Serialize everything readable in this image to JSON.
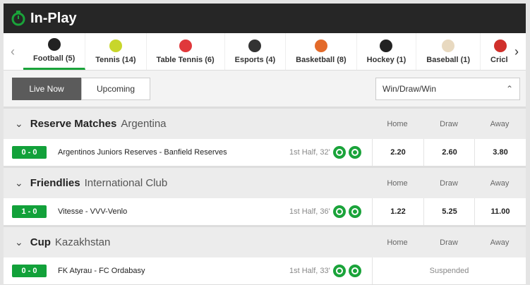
{
  "header": {
    "title": "In-Play"
  },
  "tabs": [
    "Football (5)",
    "Tennis (14)",
    "Table Tennis (6)",
    "Esports (4)",
    "Basketball (8)",
    "Hockey (1)",
    "Baseball (1)",
    "Crick"
  ],
  "toggle": [
    "Live Now",
    "Upcoming"
  ],
  "market": "Win/Draw/Win",
  "sections": [
    {
      "competition": "Reserve Matches",
      "region": "Argentina",
      "columns": [
        "Home",
        "Draw",
        "Away"
      ],
      "match": {
        "score": "0 - 0",
        "teams": "Argentinos Juniors Reserves  - Banfield Reserves",
        "time": "1st Half, 32'",
        "odds": [
          "2.20",
          "2.60",
          "3.80"
        ]
      }
    },
    {
      "competition": "Friendlies",
      "region": "International Club",
      "columns": [
        "Home",
        "Draw",
        "Away"
      ],
      "match": {
        "score": "1 - 0",
        "teams": "Vitesse  - VVV-Venlo",
        "time": "1st Half, 36'",
        "odds": [
          "1.22",
          "5.25",
          "11.00"
        ]
      }
    },
    {
      "competition": "Cup",
      "region": "Kazakhstan",
      "columns": [
        "Home",
        "Draw",
        "Away"
      ],
      "match": {
        "score": "0 - 0",
        "teams": "FK Atyrau  - FC Ordabasy",
        "time": "1st Half, 33'",
        "status": "Suspended"
      }
    }
  ]
}
